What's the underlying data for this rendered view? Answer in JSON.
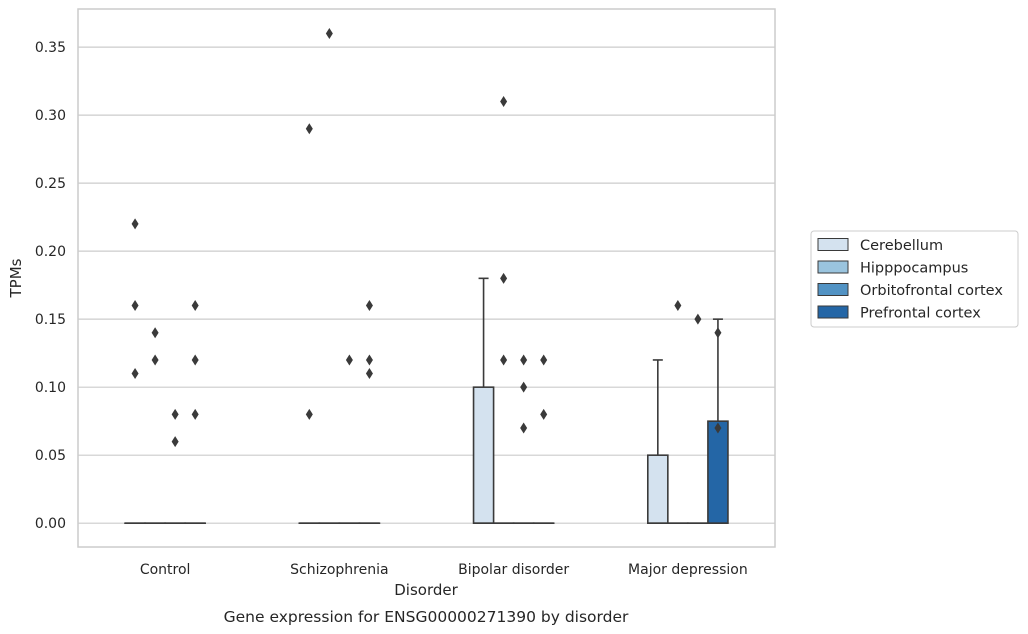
{
  "caption": "Gene expression for ENSG00000271390 by disorder",
  "chart_data": {
    "type": "box",
    "xlabel": "Disorder",
    "ylabel": "TPMs",
    "ylim": [
      -0.0175,
      0.378
    ],
    "yticks": [
      0.0,
      0.05,
      0.1,
      0.15,
      0.2,
      0.25,
      0.3,
      0.35
    ],
    "ytick_labels": [
      "0.00",
      "0.05",
      "0.10",
      "0.15",
      "0.20",
      "0.25",
      "0.30",
      "0.35"
    ],
    "grid": true,
    "legend_position": "right",
    "categories": [
      "Control",
      "Schizophrenia",
      "Bipolar disorder",
      "Major depression"
    ],
    "series": [
      {
        "name": "Cerebellum",
        "color": "#d4e2ef",
        "boxes": [
          {
            "q1": 0,
            "median": 0,
            "q3": 0,
            "whisker_low": 0,
            "whisker_high": 0,
            "outliers": [
              0.22,
              0.16,
              0.11
            ]
          },
          {
            "q1": 0,
            "median": 0,
            "q3": 0,
            "whisker_low": 0,
            "whisker_high": 0,
            "outliers": [
              0.29,
              0.08
            ]
          },
          {
            "q1": 0,
            "median": 0,
            "q3": 0.1,
            "whisker_low": 0,
            "whisker_high": 0.18,
            "outliers": []
          },
          {
            "q1": 0,
            "median": 0,
            "q3": 0.05,
            "whisker_low": 0,
            "whisker_high": 0.12,
            "outliers": []
          }
        ]
      },
      {
        "name": "Hipppocampus",
        "color": "#9ac4de",
        "boxes": [
          {
            "q1": 0,
            "median": 0,
            "q3": 0,
            "whisker_low": 0,
            "whisker_high": 0,
            "outliers": [
              0.14,
              0.12
            ]
          },
          {
            "q1": 0,
            "median": 0,
            "q3": 0,
            "whisker_low": 0,
            "whisker_high": 0,
            "outliers": [
              0.36
            ]
          },
          {
            "q1": 0,
            "median": 0,
            "q3": 0,
            "whisker_low": 0,
            "whisker_high": 0,
            "outliers": [
              0.31,
              0.18,
              0.12
            ]
          },
          {
            "q1": 0,
            "median": 0,
            "q3": 0,
            "whisker_low": 0,
            "whisker_high": 0,
            "outliers": [
              0.16
            ]
          }
        ]
      },
      {
        "name": "Orbitofrontal cortex",
        "color": "#5293c4",
        "boxes": [
          {
            "q1": 0,
            "median": 0,
            "q3": 0,
            "whisker_low": 0,
            "whisker_high": 0,
            "outliers": [
              0.08,
              0.06
            ]
          },
          {
            "q1": 0,
            "median": 0,
            "q3": 0,
            "whisker_low": 0,
            "whisker_high": 0,
            "outliers": [
              0.12
            ]
          },
          {
            "q1": 0,
            "median": 0,
            "q3": 0,
            "whisker_low": 0,
            "whisker_high": 0,
            "outliers": [
              0.12,
              0.1,
              0.07
            ]
          },
          {
            "q1": 0,
            "median": 0,
            "q3": 0,
            "whisker_low": 0,
            "whisker_high": 0,
            "outliers": [
              0.15
            ]
          }
        ]
      },
      {
        "name": "Prefrontal cortex",
        "color": "#2466a6",
        "boxes": [
          {
            "q1": 0,
            "median": 0,
            "q3": 0,
            "whisker_low": 0,
            "whisker_high": 0,
            "outliers": [
              0.16,
              0.12,
              0.08
            ]
          },
          {
            "q1": 0,
            "median": 0,
            "q3": 0,
            "whisker_low": 0,
            "whisker_high": 0,
            "outliers": [
              0.16,
              0.12,
              0.11
            ]
          },
          {
            "q1": 0,
            "median": 0,
            "q3": 0,
            "whisker_low": 0,
            "whisker_high": 0,
            "outliers": [
              0.12,
              0.08
            ]
          },
          {
            "q1": 0,
            "median": 0,
            "q3": 0.075,
            "whisker_low": 0,
            "whisker_high": 0.15,
            "outliers": [
              0.14,
              0.07
            ]
          }
        ]
      }
    ]
  }
}
